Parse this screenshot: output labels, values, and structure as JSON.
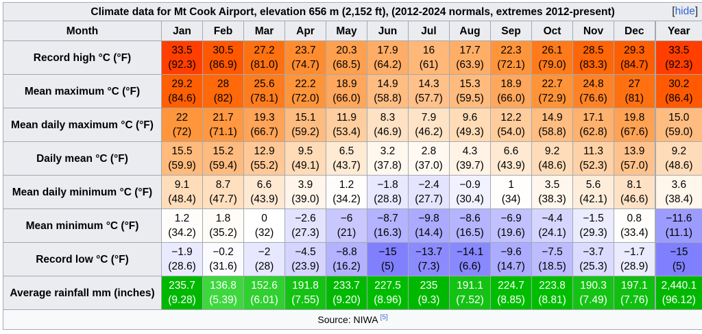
{
  "title": "Climate data for Mt Cook Airport, elevation 656 m (2,152 ft), (2012-2024 normals, extremes 2012-present)",
  "hide_label": "hide",
  "header": {
    "month_label": "Month",
    "months": [
      "Jan",
      "Feb",
      "Mar",
      "Apr",
      "May",
      "Jun",
      "Jul",
      "Aug",
      "Sep",
      "Oct",
      "Nov",
      "Dec"
    ],
    "year_label": "Year"
  },
  "rows": [
    {
      "label": "Record high °C (°F)",
      "cells": [
        {
          "v": "33.5",
          "sub": "(92.3)",
          "bg": "#ff3e00"
        },
        {
          "v": "30.5",
          "sub": "(86.9)",
          "bg": "#ff5800"
        },
        {
          "v": "27.2",
          "sub": "(81.0)",
          "bg": "#ff7110"
        },
        {
          "v": "23.7",
          "sub": "(74.7)",
          "bg": "#ff8d30"
        },
        {
          "v": "20.3",
          "sub": "(68.5)",
          "bg": "#ffa04f"
        },
        {
          "v": "17.9",
          "sub": "(64.2)",
          "bg": "#ffad66"
        },
        {
          "v": "16",
          "sub": "(61)",
          "bg": "#ffb877"
        },
        {
          "v": "17.7",
          "sub": "(63.9)",
          "bg": "#ffae67"
        },
        {
          "v": "22.3",
          "sub": "(72.1)",
          "bg": "#ff953b"
        },
        {
          "v": "26.1",
          "sub": "(79.0)",
          "bg": "#ff7a1b"
        },
        {
          "v": "28.5",
          "sub": "(83.3)",
          "bg": "#ff6608"
        },
        {
          "v": "29.3",
          "sub": "(84.7)",
          "bg": "#ff5f03"
        },
        {
          "v": "33.5",
          "sub": "(92.3)",
          "bg": "#ff3e00"
        }
      ]
    },
    {
      "label": "Mean maximum °C (°F)",
      "cells": [
        {
          "v": "29.2",
          "sub": "(84.6)",
          "bg": "#ff5f03"
        },
        {
          "v": "28",
          "sub": "(82)",
          "bg": "#ff6909"
        },
        {
          "v": "25.6",
          "sub": "(78.1)",
          "bg": "#ff7c1e"
        },
        {
          "v": "22.2",
          "sub": "(72.0)",
          "bg": "#ff953b"
        },
        {
          "v": "18.9",
          "sub": "(66.0)",
          "bg": "#ffa75c"
        },
        {
          "v": "14.9",
          "sub": "(58.8)",
          "bg": "#ffbd82"
        },
        {
          "v": "14.3",
          "sub": "(57.7)",
          "bg": "#ffc089"
        },
        {
          "v": "15.3",
          "sub": "(59.5)",
          "bg": "#ffbb7e"
        },
        {
          "v": "18.9",
          "sub": "(66.0)",
          "bg": "#ffa75c"
        },
        {
          "v": "22.7",
          "sub": "(72.9)",
          "bg": "#ff9337"
        },
        {
          "v": "24.8",
          "sub": "(76.6)",
          "bg": "#ff8326"
        },
        {
          "v": "27",
          "sub": "(81)",
          "bg": "#ff7110"
        },
        {
          "v": "30.2",
          "sub": "(86.4)",
          "bg": "#ff5a01"
        }
      ]
    },
    {
      "label": "Mean daily maximum °C (°F)",
      "cells": [
        {
          "v": "22",
          "sub": "(72)",
          "bg": "#ff963c"
        },
        {
          "v": "21.7",
          "sub": "(71.1)",
          "bg": "#ff9840"
        },
        {
          "v": "19.3",
          "sub": "(66.7)",
          "bg": "#ffa458"
        },
        {
          "v": "15.1",
          "sub": "(59.2)",
          "bg": "#ffbc80"
        },
        {
          "v": "11.9",
          "sub": "(53.4)",
          "bg": "#ffce9f"
        },
        {
          "v": "8.3",
          "sub": "(46.9)",
          "bg": "#ffe1c3"
        },
        {
          "v": "7.9",
          "sub": "(46.2)",
          "bg": "#ffe3c6"
        },
        {
          "v": "9.6",
          "sub": "(49.3)",
          "bg": "#ffdbb6"
        },
        {
          "v": "12.2",
          "sub": "(54.0)",
          "bg": "#ffcc9c"
        },
        {
          "v": "14.9",
          "sub": "(58.8)",
          "bg": "#ffbd82"
        },
        {
          "v": "17.1",
          "sub": "(62.8)",
          "bg": "#ffb16e"
        },
        {
          "v": "19.8",
          "sub": "(67.6)",
          "bg": "#ffa254"
        },
        {
          "v": "15.0",
          "sub": "(59.0)",
          "bg": "#ffbc81"
        }
      ]
    },
    {
      "label": "Daily mean °C (°F)",
      "cells": [
        {
          "v": "15.5",
          "sub": "(59.9)",
          "bg": "#ffba7c"
        },
        {
          "v": "15.2",
          "sub": "(59.4)",
          "bg": "#ffbb7f"
        },
        {
          "v": "12.9",
          "sub": "(55.2)",
          "bg": "#ffc896"
        },
        {
          "v": "9.5",
          "sub": "(49.1)",
          "bg": "#ffdbb7"
        },
        {
          "v": "6.5",
          "sub": "(43.7)",
          "bg": "#ffead4"
        },
        {
          "v": "3.2",
          "sub": "(37.8)",
          "bg": "#fff8ef"
        },
        {
          "v": "2.8",
          "sub": "(37.0)",
          "bg": "#fff9f2"
        },
        {
          "v": "4.3",
          "sub": "(39.7)",
          "bg": "#fff3e6"
        },
        {
          "v": "6.6",
          "sub": "(43.9)",
          "bg": "#ffe9d3"
        },
        {
          "v": "9.2",
          "sub": "(48.6)",
          "bg": "#ffdcb9"
        },
        {
          "v": "11.3",
          "sub": "(52.3)",
          "bg": "#ffd1a6"
        },
        {
          "v": "13.9",
          "sub": "(57.0)",
          "bg": "#ffc28c"
        },
        {
          "v": "9.2",
          "sub": "(48.6)",
          "bg": "#ffdcb9"
        }
      ]
    },
    {
      "label": "Mean daily minimum °C (°F)",
      "cells": [
        {
          "v": "9.1",
          "sub": "(48.4)",
          "bg": "#ffddba"
        },
        {
          "v": "8.7",
          "sub": "(47.7)",
          "bg": "#ffdfbe"
        },
        {
          "v": "6.6",
          "sub": "(43.9)",
          "bg": "#ffe9d3"
        },
        {
          "v": "3.9",
          "sub": "(39.0)",
          "bg": "#fff5ea"
        },
        {
          "v": "1.2",
          "sub": "(34.2)",
          "bg": "#fffdfb"
        },
        {
          "v": "−1.8",
          "sub": "(28.8)",
          "bg": "#e8e8ff"
        },
        {
          "v": "−2.4",
          "sub": "(27.7)",
          "bg": "#e4e4ff"
        },
        {
          "v": "−0.9",
          "sub": "(30.4)",
          "bg": "#f1f1ff"
        },
        {
          "v": "1",
          "sub": "(34)",
          "bg": "#fffefc"
        },
        {
          "v": "3.5",
          "sub": "(38.3)",
          "bg": "#fff6ed"
        },
        {
          "v": "5.6",
          "sub": "(42.1)",
          "bg": "#ffeddc"
        },
        {
          "v": "8.1",
          "sub": "(46.6)",
          "bg": "#ffe2c5"
        },
        {
          "v": "3.6",
          "sub": "(38.4)",
          "bg": "#fff6ec"
        }
      ]
    },
    {
      "label": "Mean minimum °C (°F)",
      "cells": [
        {
          "v": "1.2",
          "sub": "(34.2)",
          "bg": "#fffdfb"
        },
        {
          "v": "1.8",
          "sub": "(35.2)",
          "bg": "#fffcf8"
        },
        {
          "v": "0",
          "sub": "(32)",
          "bg": "#ffffff"
        },
        {
          "v": "−2.6",
          "sub": "(27.3)",
          "bg": "#e3e3ff"
        },
        {
          "v": "−6",
          "sub": "(21)",
          "bg": "#c8c8ff"
        },
        {
          "v": "−8.7",
          "sub": "(16.3)",
          "bg": "#b3b3ff"
        },
        {
          "v": "−9.8",
          "sub": "(14.4)",
          "bg": "#aaaaff"
        },
        {
          "v": "−8.6",
          "sub": "(16.5)",
          "bg": "#b4b4ff"
        },
        {
          "v": "−6.9",
          "sub": "(19.6)",
          "bg": "#c1c1ff"
        },
        {
          "v": "−4.4",
          "sub": "(24.1)",
          "bg": "#d5d5ff"
        },
        {
          "v": "−1.5",
          "sub": "(29.3)",
          "bg": "#ececff"
        },
        {
          "v": "0.8",
          "sub": "(33.4)",
          "bg": "#fffefd"
        },
        {
          "v": "−11.6",
          "sub": "(11.1)",
          "bg": "#9c9cff"
        }
      ]
    },
    {
      "label": "Record low °C (°F)",
      "cells": [
        {
          "v": "−1.9",
          "sub": "(28.6)",
          "bg": "#eaeaff"
        },
        {
          "v": "−0.2",
          "sub": "(31.6)",
          "bg": "#fafaff"
        },
        {
          "v": "−2",
          "sub": "(28)",
          "bg": "#e7e7ff"
        },
        {
          "v": "−4.5",
          "sub": "(23.9)",
          "bg": "#d4d4ff"
        },
        {
          "v": "−8.8",
          "sub": "(16.2)",
          "bg": "#b2b2ff"
        },
        {
          "v": "−15",
          "sub": "(5)",
          "bg": "#8080ff"
        },
        {
          "v": "−13.7",
          "sub": "(7.3)",
          "bg": "#8b8bff"
        },
        {
          "v": "−14.1",
          "sub": "(6.6)",
          "bg": "#8888ff"
        },
        {
          "v": "−9.6",
          "sub": "(14.7)",
          "bg": "#ababff"
        },
        {
          "v": "−7.5",
          "sub": "(18.5)",
          "bg": "#bcbcff"
        },
        {
          "v": "−3.7",
          "sub": "(25.3)",
          "bg": "#dbdbff"
        },
        {
          "v": "−1.7",
          "sub": "(28.9)",
          "bg": "#ebebff"
        },
        {
          "v": "−15",
          "sub": "(5)",
          "bg": "#8080ff"
        }
      ]
    },
    {
      "label": "Average rainfall mm (inches)",
      "cells": [
        {
          "v": "235.7",
          "sub": "(9.28)",
          "bg": "#00b800"
        },
        {
          "v": "136.8",
          "sub": "(5.39)",
          "bg": "#3ed83e"
        },
        {
          "v": "152.6",
          "sub": "(6.01)",
          "bg": "#30d030"
        },
        {
          "v": "191.8",
          "sub": "(7.55)",
          "bg": "#14c214"
        },
        {
          "v": "233.7",
          "sub": "(9.20)",
          "bg": "#00b900"
        },
        {
          "v": "227.5",
          "sub": "(8.96)",
          "bg": "#00bc00"
        },
        {
          "v": "235",
          "sub": "(9.3)",
          "bg": "#00b800"
        },
        {
          "v": "191.1",
          "sub": "(7.52)",
          "bg": "#14c214"
        },
        {
          "v": "224.7",
          "sub": "(8.85)",
          "bg": "#00bd00"
        },
        {
          "v": "223.8",
          "sub": "(8.81)",
          "bg": "#00bd00"
        },
        {
          "v": "190.3",
          "sub": "(7.49)",
          "bg": "#15c315"
        },
        {
          "v": "197.1",
          "sub": "(7.76)",
          "bg": "#10c010"
        },
        {
          "v": "2,440.1",
          "sub": "(96.12)",
          "bg": "#00b800"
        }
      ],
      "light_text": true
    }
  ],
  "source": {
    "text": "Source: NIWA",
    "ref": "[5]"
  }
}
